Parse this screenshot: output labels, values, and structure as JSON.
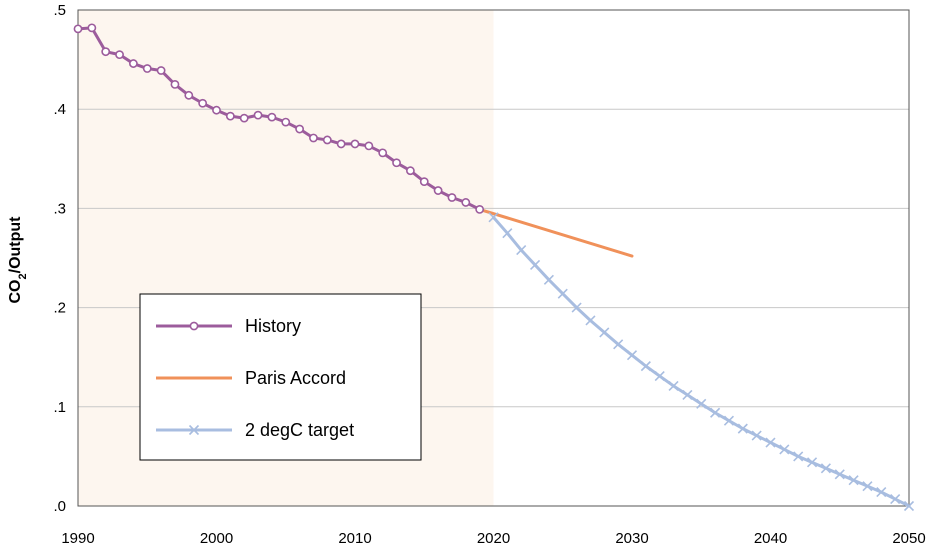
{
  "chart_data": {
    "type": "line",
    "title": "",
    "xlabel": "",
    "ylabel": "CO2/Output",
    "ylabel_main": "CO",
    "ylabel_sub": "2",
    "ylabel_rest": "/Output",
    "xlim": [
      1990,
      2050
    ],
    "ylim": [
      0.0,
      0.5
    ],
    "x_ticks": [
      1990,
      2000,
      2010,
      2020,
      2030,
      2040,
      2050
    ],
    "x_tick_labels": [
      "1990",
      "2000",
      "2010",
      "2020",
      "2030",
      "2040",
      "2050"
    ],
    "y_ticks": [
      0.0,
      0.1,
      0.2,
      0.3,
      0.4,
      0.5
    ],
    "y_tick_labels": [
      ".0",
      ".1",
      ".2",
      ".3",
      ".4",
      ".5"
    ],
    "grid": "horizontal",
    "shaded_region": {
      "x_start": 1990,
      "x_end": 2020,
      "color": "#fdf6ef"
    },
    "legend": {
      "placement": "lower-left"
    },
    "series": [
      {
        "name": "History",
        "color": "#9c5c9c",
        "marker": "circle",
        "x": [
          1990,
          1991,
          1992,
          1993,
          1994,
          1995,
          1996,
          1997,
          1998,
          1999,
          2000,
          2001,
          2002,
          2003,
          2004,
          2005,
          2006,
          2007,
          2008,
          2009,
          2010,
          2011,
          2012,
          2013,
          2014,
          2015,
          2016,
          2017,
          2018,
          2019
        ],
        "y": [
          0.481,
          0.482,
          0.458,
          0.455,
          0.446,
          0.441,
          0.439,
          0.425,
          0.414,
          0.406,
          0.399,
          0.393,
          0.391,
          0.394,
          0.392,
          0.387,
          0.38,
          0.371,
          0.369,
          0.365,
          0.365,
          0.363,
          0.356,
          0.346,
          0.338,
          0.327,
          0.318,
          0.311,
          0.306,
          0.299
        ]
      },
      {
        "name": "Paris Accord",
        "color": "#f0915a",
        "marker": "none",
        "x": [
          2019,
          2030
        ],
        "y": [
          0.299,
          0.252
        ]
      },
      {
        "name": "2 degC target",
        "color": "#a8bde0",
        "marker": "x",
        "x": [
          2020,
          2021,
          2022,
          2023,
          2024,
          2025,
          2026,
          2027,
          2028,
          2029,
          2030,
          2031,
          2032,
          2033,
          2034,
          2035,
          2036,
          2037,
          2038,
          2039,
          2040,
          2041,
          2042,
          2043,
          2044,
          2045,
          2046,
          2047,
          2048,
          2049,
          2050
        ],
        "y": [
          0.291,
          0.275,
          0.258,
          0.243,
          0.228,
          0.214,
          0.2,
          0.187,
          0.175,
          0.163,
          0.152,
          0.141,
          0.131,
          0.121,
          0.112,
          0.103,
          0.094,
          0.086,
          0.078,
          0.071,
          0.064,
          0.057,
          0.05,
          0.044,
          0.038,
          0.032,
          0.026,
          0.02,
          0.014,
          0.007,
          0.0
        ]
      }
    ]
  }
}
